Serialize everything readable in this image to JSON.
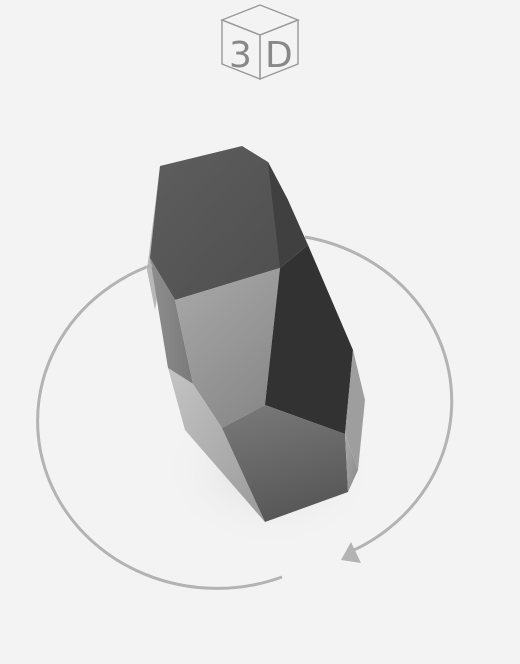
{
  "badge": {
    "label_left": "3",
    "label_right": "D",
    "stroke_color": "#9a9a9a",
    "text_color": "#888888"
  },
  "rotation_indicator": {
    "stroke_color": "#b3b3b3",
    "arrowhead_color": "#b3b3b3"
  },
  "model": {
    "description_colors": {
      "top_face": "#595959",
      "front_face": "#9c9c9c",
      "dark_face": "#333333",
      "bottom_face": "#6e6e6e",
      "side_light": "#b5b5b5"
    }
  },
  "background_color": "#f3f3f3"
}
